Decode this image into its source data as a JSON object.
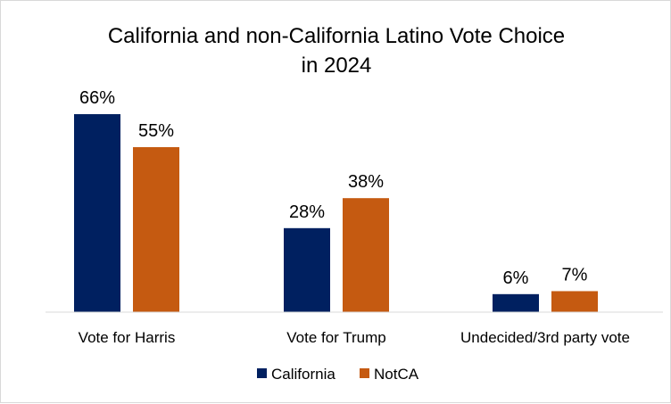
{
  "chart_data": {
    "type": "bar",
    "title": "California and non-California Latino Vote Choice in 2024",
    "title_lines": [
      "California and non-California Latino Vote Choice",
      "in 2024"
    ],
    "categories": [
      "Vote for Harris",
      "Vote for Trump",
      "Undecided/3rd party vote"
    ],
    "series": [
      {
        "name": "California",
        "values": [
          66,
          28,
          6
        ],
        "labels": [
          "66%",
          "28%",
          "6%"
        ],
        "color": "#002060"
      },
      {
        "name": "NotCA",
        "values": [
          55,
          38,
          7
        ],
        "labels": [
          "55%",
          "38%",
          "7%"
        ],
        "color": "#C55A11"
      }
    ],
    "xlabel": "",
    "ylabel": "",
    "ylim": [
      0,
      66
    ],
    "grid": false,
    "legend_position": "bottom"
  }
}
